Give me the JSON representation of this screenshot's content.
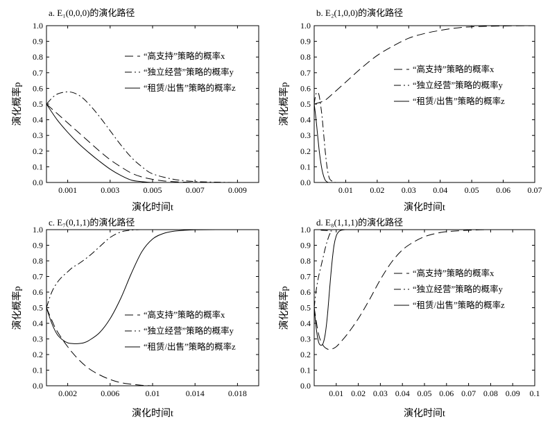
{
  "chart_data": [
    {
      "type": "line",
      "title": "a. E₁(0,0,0)的演化路径",
      "xlabel": "演化时间t",
      "ylabel": "演化概率p",
      "xlim": [
        0,
        0.01
      ],
      "ylim": [
        0,
        1
      ],
      "xticks": [
        0.001,
        0.003,
        0.005,
        0.007,
        0.009
      ],
      "xtick_labels": [
        "0.001",
        "0.003",
        "0.005",
        "0.007",
        "0.009"
      ],
      "yticks": [
        0,
        0.1,
        0.2,
        0.3,
        0.4,
        0.5,
        0.6,
        0.7,
        0.8,
        0.9,
        1.0
      ],
      "ytick_labels": [
        "0.0",
        "0.1",
        "0.2",
        "0.3",
        "0.4",
        "0.5",
        "0.6",
        "0.7",
        "0.8",
        "0.9",
        "1.0"
      ],
      "legend_position": "top-right",
      "series": [
        {
          "name": "“高支持”策略的概率x",
          "style": "dashed",
          "x": [
            0,
            0.0005,
            0.001,
            0.0015,
            0.002,
            0.0025,
            0.003,
            0.0035,
            0.004,
            0.0045,
            0.005,
            0.0055,
            0.006,
            0.0065,
            0.007,
            0.008,
            0.01
          ],
          "y": [
            0.5,
            0.44,
            0.38,
            0.32,
            0.26,
            0.2,
            0.145,
            0.1,
            0.06,
            0.035,
            0.02,
            0.01,
            0.005,
            0.002,
            0.0,
            0.0,
            0.0
          ]
        },
        {
          "name": "“独立经营”策略的概率y",
          "style": "dashdot",
          "x": [
            0,
            0.0004,
            0.0008,
            0.0012,
            0.0016,
            0.002,
            0.0025,
            0.003,
            0.0035,
            0.004,
            0.0045,
            0.005,
            0.006,
            0.007,
            0.008,
            0.009,
            0.01
          ],
          "y": [
            0.5,
            0.555,
            0.575,
            0.575,
            0.55,
            0.5,
            0.42,
            0.33,
            0.24,
            0.16,
            0.1,
            0.055,
            0.02,
            0.006,
            0.002,
            0.0,
            0.0
          ]
        },
        {
          "name": "“租赁/出售”策略的概率z",
          "style": "solid",
          "x": [
            0,
            0.0005,
            0.001,
            0.0015,
            0.002,
            0.0025,
            0.003,
            0.0035,
            0.004,
            0.0045,
            0.005,
            0.006,
            0.007,
            0.008,
            0.01
          ],
          "y": [
            0.5,
            0.4,
            0.32,
            0.25,
            0.19,
            0.135,
            0.085,
            0.045,
            0.015,
            0.005,
            0.0,
            0.0,
            0.0,
            0.0,
            0.0
          ]
        }
      ]
    },
    {
      "type": "line",
      "title": "b. E₂(1,0,0)的演化路径",
      "xlabel": "演化时间t",
      "ylabel": "演化概率p",
      "xlim": [
        0,
        0.07
      ],
      "ylim": [
        0,
        1
      ],
      "xticks": [
        0.01,
        0.02,
        0.03,
        0.04,
        0.05,
        0.06,
        0.07
      ],
      "xtick_labels": [
        "0.01",
        "0.02",
        "0.03",
        "0.04",
        "0.05",
        "0.06",
        "0.07"
      ],
      "yticks": [
        0,
        0.1,
        0.2,
        0.3,
        0.4,
        0.5,
        0.6,
        0.7,
        0.8,
        0.9,
        1.0
      ],
      "ytick_labels": [
        "0.0",
        "0.1",
        "0.2",
        "0.3",
        "0.4",
        "0.5",
        "0.6",
        "0.7",
        "0.8",
        "0.9",
        "1.0"
      ],
      "legend_position": "center-right",
      "series": [
        {
          "name": "“高支持”策略的概率x",
          "style": "dashed",
          "x": [
            0,
            0.003,
            0.005,
            0.01,
            0.015,
            0.02,
            0.025,
            0.03,
            0.035,
            0.04,
            0.045,
            0.05,
            0.06,
            0.07
          ],
          "y": [
            0.5,
            0.52,
            0.55,
            0.64,
            0.73,
            0.81,
            0.87,
            0.92,
            0.95,
            0.97,
            0.985,
            0.993,
            0.998,
            1.0
          ]
        },
        {
          "name": "“独立经营”策略的概率y",
          "style": "dashdot",
          "x": [
            0,
            0.0005,
            0.001,
            0.0015,
            0.002,
            0.0025,
            0.003,
            0.0035,
            0.004,
            0.0045,
            0.005,
            0.006,
            0.007,
            0.01,
            0.07
          ],
          "y": [
            0.5,
            0.56,
            0.575,
            0.56,
            0.5,
            0.42,
            0.31,
            0.2,
            0.11,
            0.05,
            0.02,
            0.005,
            0.0,
            0.0,
            0.0
          ]
        },
        {
          "name": "“租赁/出售”策略的概率z",
          "style": "solid",
          "x": [
            0,
            0.0005,
            0.001,
            0.0015,
            0.002,
            0.0025,
            0.003,
            0.0035,
            0.004,
            0.0045,
            0.005,
            0.01,
            0.07
          ],
          "y": [
            0.5,
            0.42,
            0.32,
            0.22,
            0.14,
            0.08,
            0.04,
            0.015,
            0.005,
            0.0,
            0.0,
            0.0,
            0.0
          ]
        }
      ]
    },
    {
      "type": "line",
      "title": "c. E₇(0,1,1)的演化路径",
      "xlabel": "演化时间t",
      "ylabel": "演化概率p",
      "xlim": [
        0,
        0.02
      ],
      "ylim": [
        0,
        1
      ],
      "xticks": [
        0.002,
        0.006,
        0.01,
        0.014,
        0.018
      ],
      "xtick_labels": [
        "0.002",
        "0.006",
        "0.01",
        "0.014",
        "0.018"
      ],
      "yticks": [
        0,
        0.1,
        0.2,
        0.3,
        0.4,
        0.5,
        0.6,
        0.7,
        0.8,
        0.9,
        1.0
      ],
      "ytick_labels": [
        "0.0",
        "0.1",
        "0.2",
        "0.3",
        "0.4",
        "0.5",
        "0.6",
        "0.7",
        "0.8",
        "0.9",
        "1.0"
      ],
      "legend_position": "bottom-right",
      "series": [
        {
          "name": "“高支持”策略的概率x",
          "style": "dashed",
          "x": [
            0,
            0.0005,
            0.001,
            0.002,
            0.003,
            0.004,
            0.005,
            0.006,
            0.007,
            0.008,
            0.009,
            0.01,
            0.011
          ],
          "y": [
            0.5,
            0.42,
            0.35,
            0.25,
            0.17,
            0.11,
            0.07,
            0.04,
            0.02,
            0.01,
            0.003,
            0.0,
            0.0
          ]
        },
        {
          "name": "“独立经营”策略的概率y",
          "style": "dashdot",
          "x": [
            0,
            0.0005,
            0.001,
            0.0015,
            0.002,
            0.0025,
            0.003,
            0.004,
            0.005,
            0.006,
            0.007,
            0.008,
            0.009,
            0.01
          ],
          "y": [
            0.5,
            0.6,
            0.66,
            0.7,
            0.73,
            0.76,
            0.78,
            0.83,
            0.89,
            0.95,
            0.985,
            0.997,
            1.0,
            1.0
          ]
        },
        {
          "name": "“租赁/出售”策略的概率z",
          "style": "solid",
          "x": [
            0,
            0.0005,
            0.001,
            0.0015,
            0.002,
            0.0025,
            0.003,
            0.0035,
            0.004,
            0.005,
            0.006,
            0.007,
            0.008,
            0.009,
            0.01,
            0.011,
            0.012,
            0.013,
            0.014,
            0.016,
            0.02
          ],
          "y": [
            0.5,
            0.4,
            0.33,
            0.295,
            0.275,
            0.27,
            0.27,
            0.275,
            0.29,
            0.34,
            0.43,
            0.56,
            0.72,
            0.86,
            0.94,
            0.975,
            0.99,
            0.996,
            0.999,
            1.0,
            1.0
          ]
        }
      ]
    },
    {
      "type": "line",
      "title": "d. E₈(1,1,1)的演化路径",
      "xlabel": "演化时间t",
      "ylabel": "演化概率p",
      "xlim": [
        0,
        0.1
      ],
      "ylim": [
        0,
        1
      ],
      "xticks": [
        0.01,
        0.02,
        0.03,
        0.04,
        0.05,
        0.06,
        0.07,
        0.08,
        0.09,
        0.1
      ],
      "xtick_labels": [
        "0.01",
        "0.02",
        "0.03",
        "0.04",
        "0.05",
        "0.06",
        "0.07",
        "0.08",
        "0.09",
        "0.1"
      ],
      "yticks": [
        0,
        0.1,
        0.2,
        0.3,
        0.4,
        0.5,
        0.6,
        0.7,
        0.8,
        0.9,
        1.0
      ],
      "ytick_labels": [
        "0.0",
        "0.1",
        "0.2",
        "0.3",
        "0.4",
        "0.5",
        "0.6",
        "0.7",
        "0.8",
        "0.9",
        "1.0"
      ],
      "legend_position": "center-right",
      "series": [
        {
          "name": "“高支持”策略的概率x",
          "style": "dashed",
          "x": [
            0,
            0.002,
            0.004,
            0.006,
            0.008,
            0.01,
            0.012,
            0.015,
            0.02,
            0.025,
            0.03,
            0.035,
            0.04,
            0.045,
            0.05,
            0.055,
            0.06,
            0.07,
            0.08,
            0.1
          ],
          "y": [
            0.5,
            0.33,
            0.26,
            0.235,
            0.235,
            0.25,
            0.28,
            0.33,
            0.43,
            0.55,
            0.68,
            0.79,
            0.87,
            0.92,
            0.955,
            0.975,
            0.987,
            0.996,
            1.0,
            1.0
          ]
        },
        {
          "name": "“独立经营”策略的概率y",
          "style": "dashdot",
          "x": [
            0,
            0.001,
            0.002,
            0.003,
            0.004,
            0.005,
            0.006,
            0.007,
            0.008,
            0.01,
            0.1
          ],
          "y": [
            0.5,
            0.62,
            0.7,
            0.76,
            0.82,
            0.88,
            0.93,
            0.97,
            0.99,
            1.0,
            1.0
          ]
        },
        {
          "name": "“租赁/出售”策略的概率z",
          "style": "solid",
          "x": [
            0,
            0.001,
            0.002,
            0.003,
            0.004,
            0.005,
            0.006,
            0.007,
            0.008,
            0.009,
            0.01,
            0.011,
            0.012,
            0.014,
            0.016,
            0.1
          ],
          "y": [
            0.5,
            0.36,
            0.28,
            0.26,
            0.27,
            0.33,
            0.45,
            0.62,
            0.78,
            0.9,
            0.96,
            0.985,
            0.995,
            1.0,
            1.0,
            1.0
          ]
        }
      ]
    }
  ]
}
